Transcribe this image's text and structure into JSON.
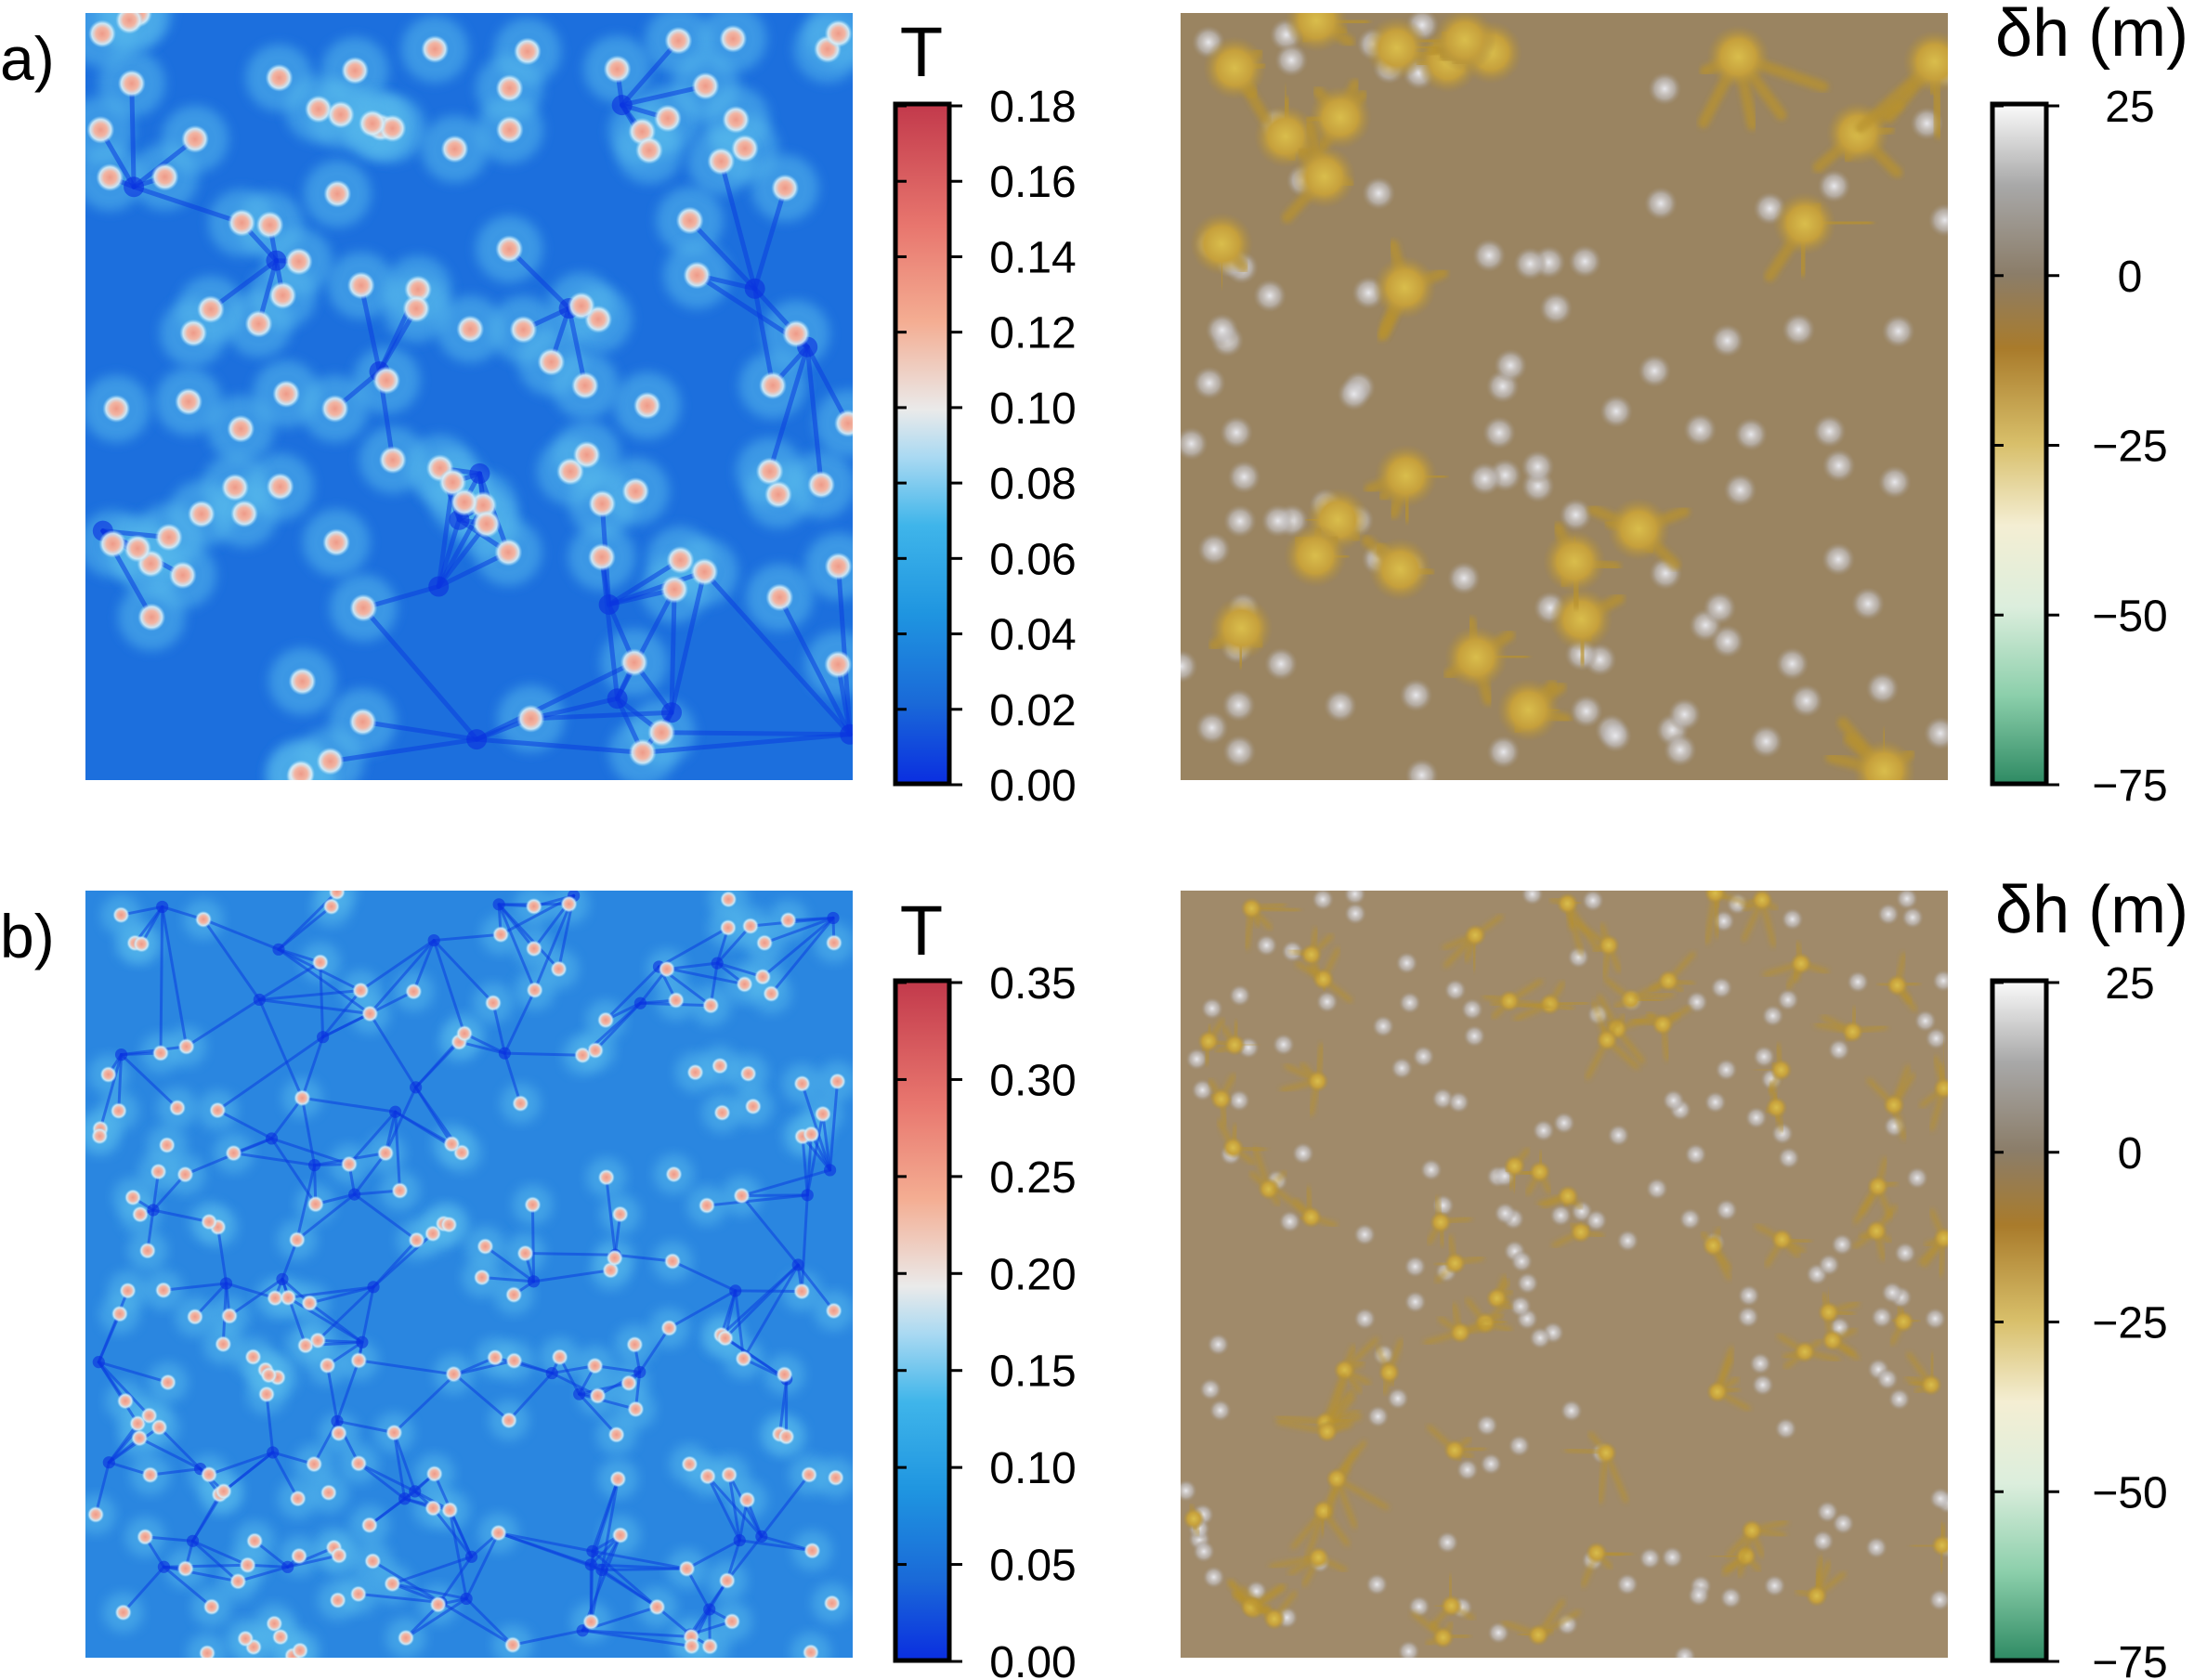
{
  "figure": {
    "panels": [
      {
        "label": "a)",
        "t_title": "T",
        "dh_title": "δh (m)",
        "t_ticks": [
          "0.00",
          "0.02",
          "0.04",
          "0.06",
          "0.08",
          "0.10",
          "0.12",
          "0.14",
          "0.16",
          "0.18"
        ],
        "dh_ticks": [
          "25",
          "0",
          "−25",
          "−50",
          "−75"
        ]
      },
      {
        "label": "b)",
        "t_title": "T",
        "dh_title": "δh (m)",
        "t_ticks": [
          "0.00",
          "0.05",
          "0.10",
          "0.15",
          "0.20",
          "0.25",
          "0.30",
          "0.35"
        ],
        "dh_ticks": [
          "25",
          "0",
          "−25",
          "−50",
          "−75"
        ]
      }
    ]
  },
  "chart_data": [
    {
      "type": "heatmap",
      "panel": "a)",
      "variable": "T",
      "colorbar_label": "T",
      "colorbar_range": [
        0.0,
        0.18
      ],
      "colorbar_ticks": [
        0.0,
        0.02,
        0.04,
        0.06,
        0.08,
        0.1,
        0.12,
        0.14,
        0.16,
        0.18
      ],
      "colormap": [
        "#0a2ee0",
        "#1f6fd8",
        "#28a8e8",
        "#7fc8ee",
        "#e6e6e6",
        "#f2a78a",
        "#e06666",
        "#c83a4a"
      ]
    },
    {
      "type": "heatmap",
      "panel": "a)",
      "variable": "δh",
      "colorbar_label": "δh (m)",
      "colorbar_range": [
        -75,
        25
      ],
      "colorbar_ticks": [
        25,
        0,
        -25,
        -50,
        -75
      ],
      "colormap": [
        "#2e8a63",
        "#a8dcc0",
        "#f4efd8",
        "#c8a850",
        "#a87a30",
        "#8c7b66",
        "#a0a0a0",
        "#fafafa"
      ]
    },
    {
      "type": "heatmap",
      "panel": "b)",
      "variable": "T",
      "colorbar_label": "T",
      "colorbar_range": [
        0.0,
        0.35
      ],
      "colorbar_ticks": [
        0.0,
        0.05,
        0.1,
        0.15,
        0.2,
        0.25,
        0.3,
        0.35
      ],
      "colormap": [
        "#0a2ee0",
        "#1f6fd8",
        "#28a8e8",
        "#7fc8ee",
        "#e6e6e6",
        "#f2a78a",
        "#e06666",
        "#c83a4a"
      ]
    },
    {
      "type": "heatmap",
      "panel": "b)",
      "variable": "δh",
      "colorbar_label": "δh (m)",
      "colorbar_range": [
        -75,
        25
      ],
      "colorbar_ticks": [
        25,
        0,
        -25,
        -50,
        -75
      ],
      "colormap": [
        "#2e8a63",
        "#a8dcc0",
        "#f4efd8",
        "#c8a850",
        "#a87a30",
        "#8c7b66",
        "#a0a0a0",
        "#fafafa"
      ]
    }
  ]
}
